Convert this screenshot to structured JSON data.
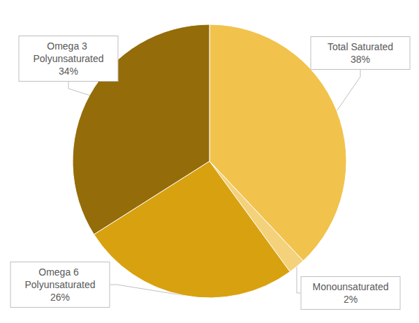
{
  "chart_data": {
    "type": "pie",
    "categories": [
      "Total Saturated",
      "Monounsaturated",
      "Omega 6 Polyunsaturated",
      "Omega 3 Polyunsaturated"
    ],
    "values": [
      38,
      2,
      26,
      34
    ],
    "value_labels": [
      "38%",
      "2%",
      "26%",
      "34%"
    ],
    "colors": [
      "#f1c34c",
      "#f4d27c",
      "#d8a10f",
      "#946c09"
    ]
  }
}
